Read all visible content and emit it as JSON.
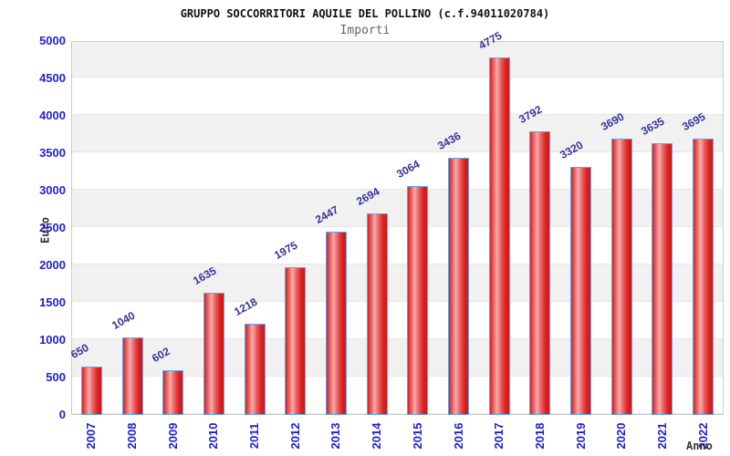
{
  "chart_data": {
    "type": "bar",
    "title": "GRUPPO SOCCORRITORI AQUILE DEL POLLINO (c.f.94011020784)",
    "subtitle": "Importi",
    "xlabel": "Anno",
    "ylabel": "Euro",
    "categories": [
      "2007",
      "2008",
      "2009",
      "2010",
      "2011",
      "2012",
      "2013",
      "2014",
      "2015",
      "2016",
      "2017",
      "2018",
      "2019",
      "2020",
      "2021",
      "2022"
    ],
    "values": [
      650,
      1040,
      602,
      1635,
      1218,
      1975,
      2447,
      2694,
      3064,
      3436,
      4775,
      3792,
      3320,
      3690,
      3635,
      3695
    ],
    "ylim": [
      0,
      5000
    ],
    "ytick_step": 500,
    "yticks": [
      0,
      500,
      1000,
      1500,
      2000,
      2500,
      3000,
      3500,
      4000,
      4500,
      5000
    ],
    "grid": "alternating horizontal bands every 500",
    "legend_position": "none",
    "bar_value_labels_shown": true,
    "colors": {
      "bar_fill": "#d92020",
      "bar_highlight": "#f6acac",
      "bar_border": "#58aaf0",
      "axis_tick_label": "#2222cc",
      "value_label": "#333399",
      "band_gray": "#f1f1f2",
      "plot_border": "#cccccc",
      "title": "#111111",
      "subtitle": "#666666",
      "axis_title": "#333333"
    }
  }
}
